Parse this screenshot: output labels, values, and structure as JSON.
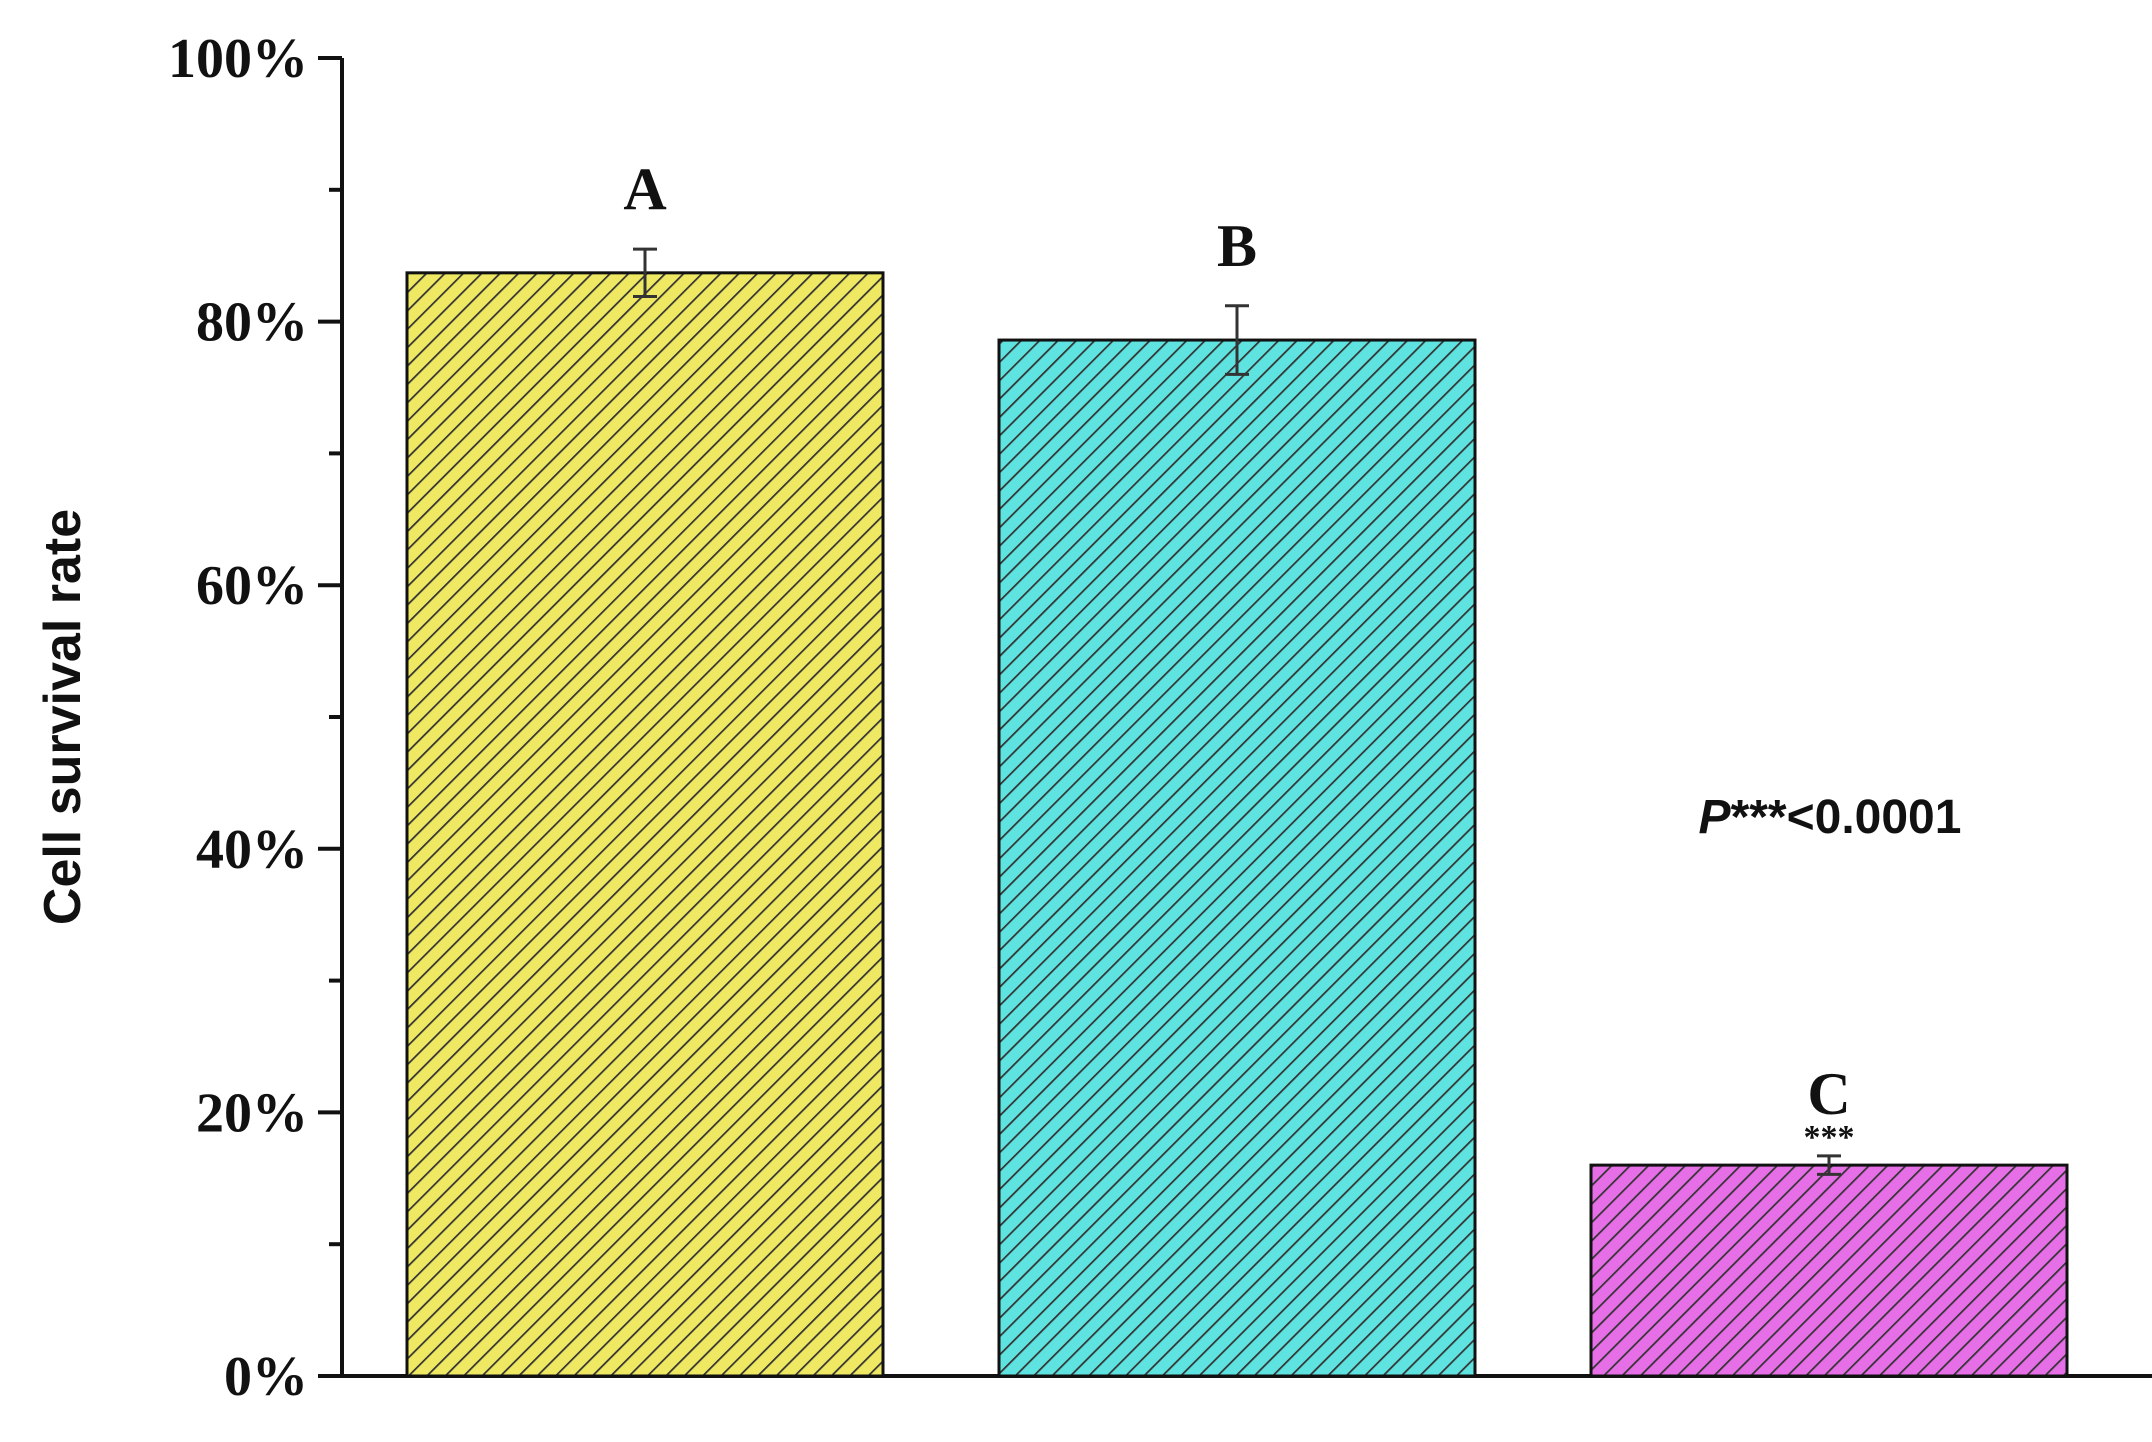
{
  "chart_data": {
    "type": "bar",
    "ylabel": "Cell survival rate",
    "xlabel": "",
    "ylim": [
      0,
      100
    ],
    "yticks": [
      0,
      20,
      40,
      60,
      80,
      100
    ],
    "ytick_labels": [
      "0%",
      "20%",
      "40%",
      "60%",
      "80%",
      "100%"
    ],
    "minor_ticks": [
      10,
      30,
      50,
      70,
      90
    ],
    "bars": [
      {
        "label": "A",
        "value": 83.7,
        "error": 1.8,
        "color": "#eee863",
        "sig": ""
      },
      {
        "label": "B",
        "value": 78.6,
        "error": 2.6,
        "color": "#5ee3e0",
        "sig": ""
      },
      {
        "label": "C",
        "value": 16.0,
        "error": 0.7,
        "color": "#e66ee6",
        "sig": "***"
      }
    ],
    "annotation": {
      "italic": "P",
      "rest": "***<0.0001"
    },
    "grid": false,
    "hatch": "diagonal"
  }
}
